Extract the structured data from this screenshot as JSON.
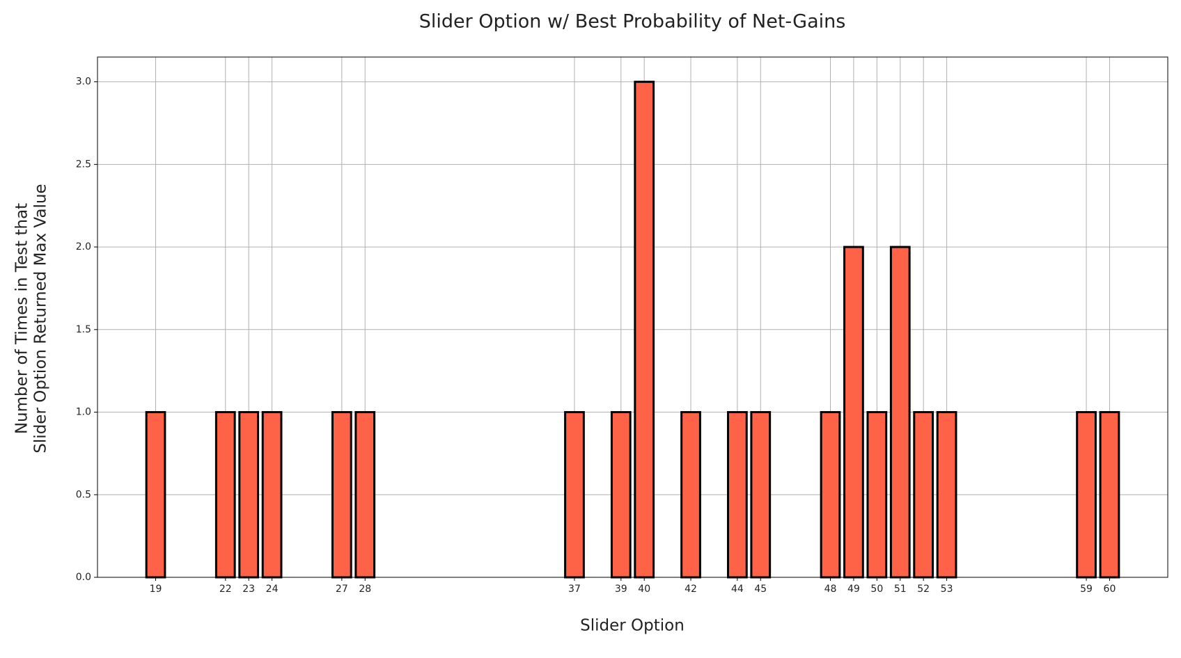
{
  "chart_data": {
    "type": "bar",
    "title": "Slider Option w/ Best Probability of Net-Gains",
    "xlabel": "Slider Option",
    "ylabel": [
      "Number of Times in Test that",
      "Slider Option Returned Max Value"
    ],
    "x": [
      19,
      22,
      23,
      24,
      27,
      28,
      37,
      39,
      40,
      42,
      44,
      45,
      48,
      49,
      50,
      51,
      52,
      53,
      59,
      60
    ],
    "values": [
      1,
      1,
      1,
      1,
      1,
      1,
      1,
      1,
      3,
      1,
      1,
      1,
      1,
      2,
      1,
      2,
      1,
      1,
      1,
      1
    ],
    "color": "#ff6347",
    "edgecolor": "#000000",
    "xlim": [
      16.5,
      62.5
    ],
    "xticks": [
      19,
      22,
      23,
      24,
      27,
      28,
      37,
      39,
      40,
      42,
      44,
      45,
      48,
      49,
      50,
      51,
      52,
      53,
      59,
      60
    ],
    "ylim": [
      0,
      3.15
    ],
    "yticks": [
      {
        "value": 0,
        "label": "0.0"
      },
      {
        "value": 0.5,
        "label": "0.5"
      },
      {
        "value": 1,
        "label": "1.0"
      },
      {
        "value": 1.5,
        "label": "1.5"
      },
      {
        "value": 2,
        "label": "2.0"
      },
      {
        "value": 2.5,
        "label": "2.5"
      },
      {
        "value": 3,
        "label": "3.0"
      }
    ],
    "grid": true
  }
}
